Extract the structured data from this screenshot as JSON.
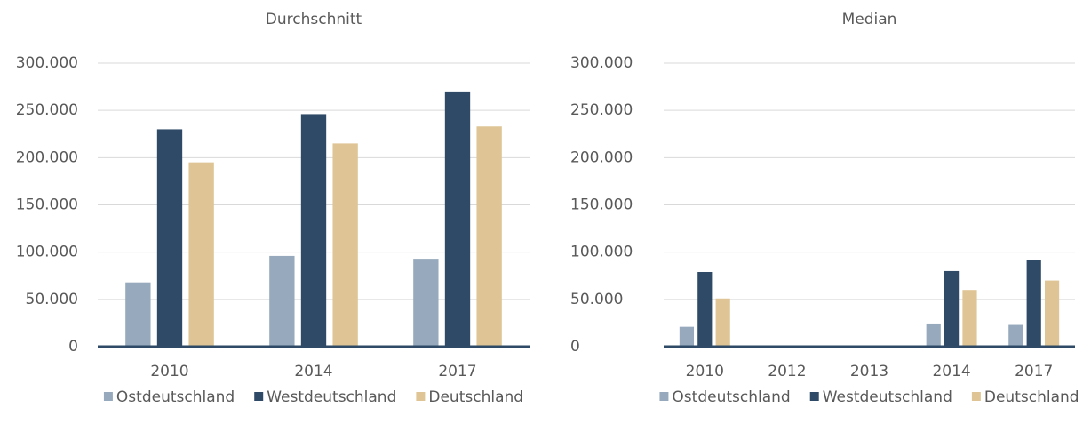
{
  "chart_data": [
    {
      "type": "bar",
      "title": "Durchschnitt",
      "categories": [
        "2010",
        "2014",
        "2017"
      ],
      "series": [
        {
          "name": "Ostdeutschland",
          "color": "#97aabd",
          "values": [
            68000,
            96000,
            93000
          ]
        },
        {
          "name": "Westdeutschland",
          "color": "#2e4a66",
          "values": [
            230000,
            246000,
            270000
          ]
        },
        {
          "name": "Deutschland",
          "color": "#dfc596",
          "values": [
            195000,
            215000,
            233000
          ]
        }
      ],
      "ylim": [
        0,
        300000
      ],
      "yticks": [
        0,
        {
          "value": 50000,
          "label": "50.000"
        },
        {
          "value": 100000,
          "label": "100.000"
        },
        {
          "value": 150000,
          "label": "150.000"
        },
        {
          "value": 200000,
          "label": "200.000"
        },
        {
          "value": 250000,
          "label": "250.000"
        },
        {
          "value": 300000,
          "label": "300.000"
        }
      ],
      "grid": true,
      "legend": "bottom"
    },
    {
      "type": "bar",
      "title": "Median",
      "categories": [
        "2010",
        "2012",
        "2013",
        "2014",
        "2017"
      ],
      "series": [
        {
          "name": "Ostdeutschland",
          "color": "#97aabd",
          "values": [
            21000,
            null,
            null,
            24500,
            23000
          ]
        },
        {
          "name": "Westdeutschland",
          "color": "#2e4a66",
          "values": [
            79000,
            null,
            null,
            80000,
            92000
          ]
        },
        {
          "name": "Deutschland",
          "color": "#dfc596",
          "values": [
            51000,
            null,
            null,
            60000,
            70000
          ]
        }
      ],
      "ylim": [
        0,
        300000
      ],
      "yticks": [
        0,
        {
          "value": 50000,
          "label": "50.000"
        },
        {
          "value": 100000,
          "label": "100.000"
        },
        {
          "value": 150000,
          "label": "150.000"
        },
        {
          "value": 200000,
          "label": "200.000"
        },
        {
          "value": 250000,
          "label": "250.000"
        },
        {
          "value": 300000,
          "label": "300.000"
        }
      ],
      "grid": true,
      "legend": "bottom"
    }
  ]
}
